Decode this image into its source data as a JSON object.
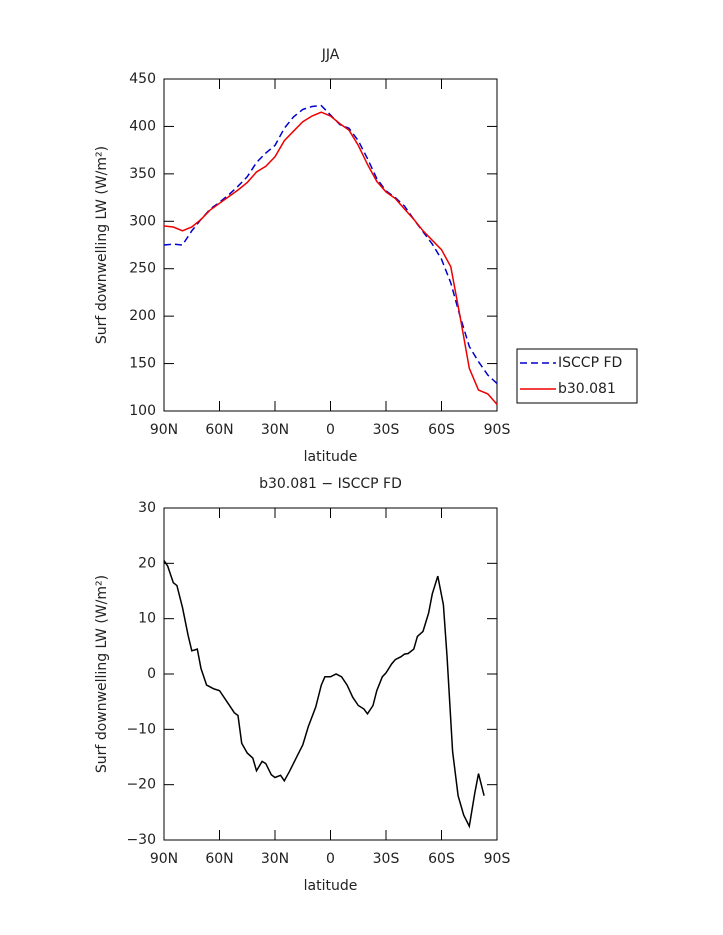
{
  "chart_data": [
    {
      "type": "line",
      "title": "JJA",
      "xlabel": "latitude",
      "ylabel": "Surf downwelling LW (W/m²)",
      "x": [
        90,
        85,
        80,
        75,
        70,
        65,
        60,
        55,
        50,
        45,
        40,
        35,
        30,
        25,
        20,
        15,
        10,
        5,
        0,
        -5,
        -10,
        -15,
        -20,
        -25,
        -30,
        -35,
        -40,
        -45,
        -50,
        -55,
        -60,
        -65,
        -70,
        -75,
        -80,
        -85,
        -90
      ],
      "series": [
        {
          "name": "ISCCP FD",
          "color": "#0000cc",
          "style": "dashed",
          "values": [
            275,
            276,
            275,
            290,
            302,
            313,
            320,
            328,
            337,
            347,
            362,
            372,
            380,
            398,
            410,
            418,
            421,
            422,
            412,
            402,
            398,
            385,
            366,
            345,
            332,
            325,
            316,
            302,
            289,
            276,
            260,
            235,
            200,
            168,
            152,
            138,
            129
          ]
        },
        {
          "name": "b30.081",
          "color": "#ee0000",
          "style": "solid",
          "values": [
            295,
            294,
            290,
            294,
            302,
            312,
            319,
            326,
            333,
            341,
            352,
            358,
            368,
            385,
            395,
            405,
            411,
            415,
            411,
            403,
            396,
            380,
            360,
            342,
            331,
            324,
            313,
            302,
            290,
            280,
            270,
            252,
            200,
            145,
            122,
            118,
            107
          ]
        }
      ],
      "xlim": [
        90,
        -90
      ],
      "xticks": [
        {
          "value": 90,
          "label": "90N"
        },
        {
          "value": 60,
          "label": "60N"
        },
        {
          "value": 30,
          "label": "30N"
        },
        0,
        {
          "value": -30,
          "label": "30S"
        },
        {
          "value": -60,
          "label": "60S"
        },
        {
          "value": -90,
          "label": "90S"
        }
      ],
      "ylim": [
        100,
        450
      ],
      "yticks": [
        100,
        150,
        200,
        250,
        300,
        350,
        400,
        450
      ],
      "legend": "outside right"
    },
    {
      "type": "line",
      "title": "b30.081 − ISCCP FD",
      "xlabel": "latitude",
      "ylabel": "Surf downwelling LW (W/m²)",
      "x": [
        90,
        88,
        85,
        83,
        80,
        77,
        75,
        72,
        70,
        67,
        63,
        60,
        55,
        52,
        50,
        48,
        45,
        42,
        40,
        37,
        35,
        32,
        30,
        27,
        25,
        22,
        18,
        15,
        12,
        8,
        5,
        3,
        0,
        -3,
        -6,
        -9,
        -12,
        -15,
        -18,
        -20,
        -23,
        -25,
        -28,
        -30,
        -33,
        -35,
        -38,
        -40,
        -42,
        -45,
        -47,
        -50,
        -53,
        -55,
        -58,
        -61,
        -63,
        -66,
        -69,
        -72,
        -75,
        -78,
        -80,
        -83
      ],
      "values": [
        20.5,
        19.5,
        16.5,
        16,
        12,
        7,
        4.2,
        4.5,
        1,
        -2,
        -2.7,
        -3,
        -5.5,
        -7,
        -7.5,
        -12.5,
        -14.3,
        -15.2,
        -17.5,
        -15.8,
        -16.2,
        -18.2,
        -18.7,
        -18.3,
        -19.3,
        -17.5,
        -14.8,
        -12.8,
        -9.5,
        -6,
        -2,
        -0.5,
        -0.5,
        0,
        -0.5,
        -2,
        -4.2,
        -5.7,
        -6.3,
        -7.2,
        -5.7,
        -3,
        -0.5,
        0.2,
        1.8,
        2.6,
        3.1,
        3.6,
        3.7,
        4.5,
        6.8,
        7.7,
        11,
        14.5,
        17.7,
        12.5,
        3,
        -14,
        -22,
        -25.5,
        -27.5,
        -21.5,
        -18,
        -22
      ],
      "color": "#000000",
      "xlim": [
        90,
        -90
      ],
      "xticks": [
        {
          "value": 90,
          "label": "90N"
        },
        {
          "value": 60,
          "label": "60N"
        },
        {
          "value": 30,
          "label": "30N"
        },
        0,
        {
          "value": -30,
          "label": "30S"
        },
        {
          "value": -60,
          "label": "60S"
        },
        {
          "value": -90,
          "label": "90S"
        }
      ],
      "ylim": [
        -30,
        30
      ],
      "yticks": [
        {
          "value": -30,
          "label": "−30"
        },
        {
          "value": -20,
          "label": "−20"
        },
        {
          "value": -10,
          "label": "−10"
        },
        0,
        10,
        20,
        30
      ]
    }
  ]
}
